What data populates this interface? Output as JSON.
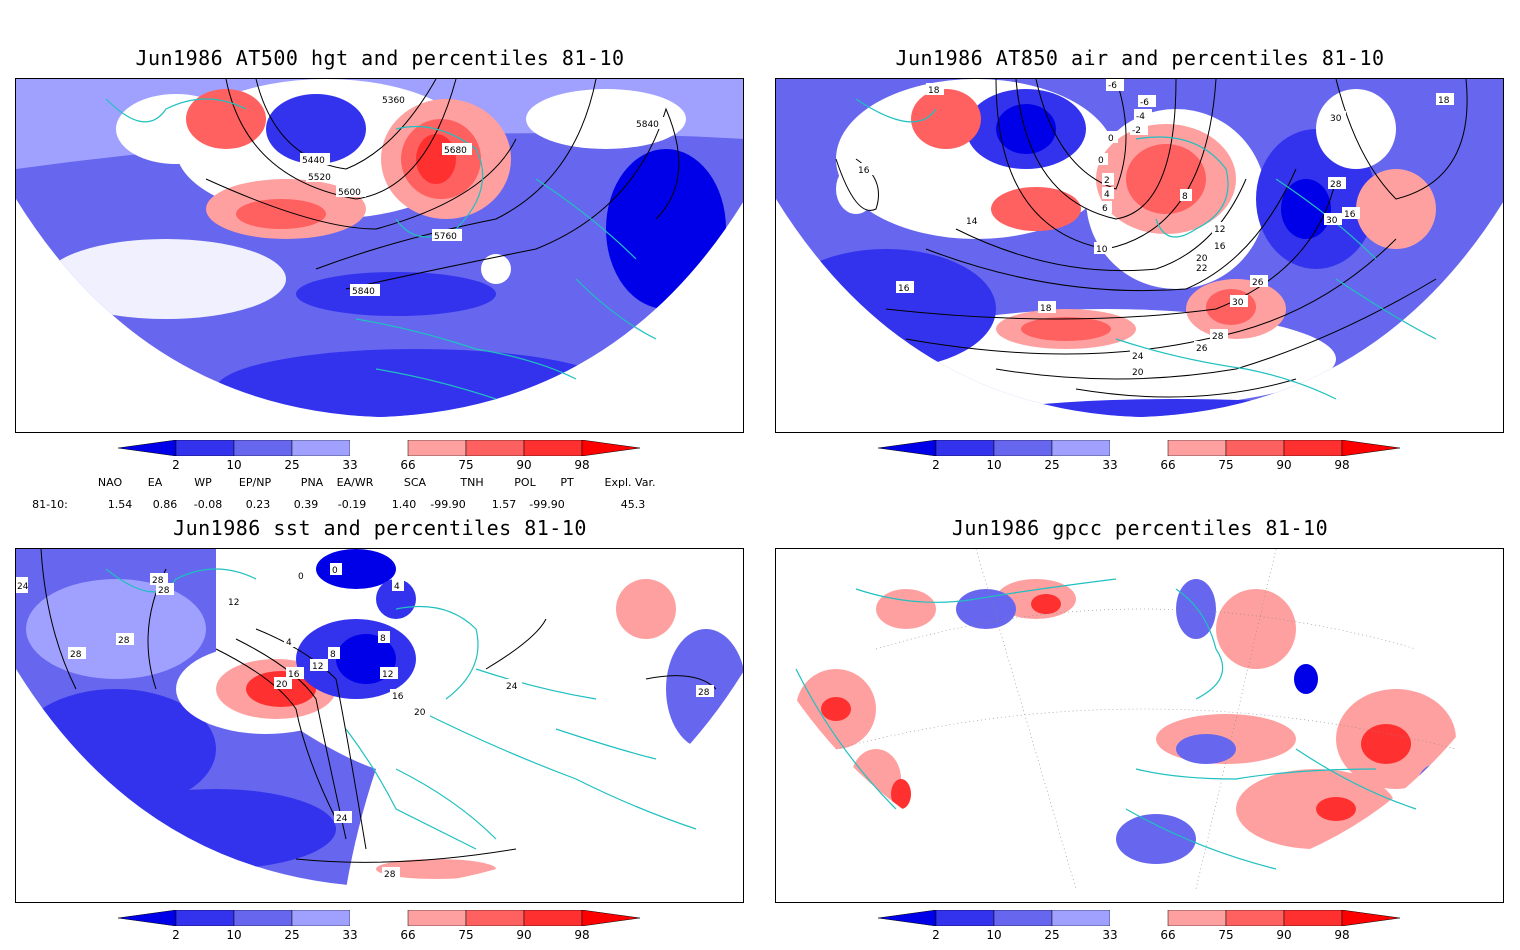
{
  "panels": [
    {
      "id": "p1",
      "title": "Jun1986 AT500 hgt and percentiles 81-10",
      "contour_labels": [
        "5360",
        "5440",
        "5520",
        "5600",
        "5680",
        "5760",
        "5840",
        "5840"
      ]
    },
    {
      "id": "p2",
      "title": "Jun1986 AT850 air and percentiles 81-10",
      "contour_labels": [
        "-6",
        "-6",
        "-4",
        "-2",
        "0",
        "0",
        "2",
        "4",
        "6",
        "8",
        "10",
        "12",
        "14",
        "16",
        "16",
        "16",
        "18",
        "18",
        "18",
        "20",
        "20",
        "22",
        "24",
        "26",
        "26",
        "28",
        "28",
        "30",
        "30",
        "30",
        "16"
      ]
    },
    {
      "id": "p3",
      "title": "Jun1986 sst and percentiles 81-10",
      "contour_labels": [
        "24",
        "28",
        "28",
        "28",
        "28",
        "12",
        "0",
        "0",
        "4",
        "4",
        "8",
        "8",
        "12",
        "12",
        "16",
        "16",
        "20",
        "20",
        "24",
        "24",
        "28",
        "28"
      ]
    },
    {
      "id": "p4",
      "title": "Jun1986 gpcc percentiles 81-10",
      "contour_labels": []
    }
  ],
  "colorbar": {
    "ticks": [
      "2",
      "10",
      "25",
      "33",
      "66",
      "75",
      "90",
      "98"
    ],
    "colors": [
      "#0000e8",
      "#3333ee",
      "#6666ee",
      "#a0a0ff",
      "#ffffff",
      "#ffa0a0",
      "#ff6060",
      "#ff3030",
      "#ff0000"
    ]
  },
  "indices": {
    "headers": [
      "NAO",
      "EA",
      "WP",
      "EP/NP",
      "PNA",
      "EA/WR",
      "SCA",
      "TNH",
      "POL",
      "PT",
      "Expl. Var."
    ],
    "row_label": "81-10:",
    "values": [
      "1.54",
      "0.86",
      "-0.08",
      "0.23",
      "0.39",
      "-0.19",
      "1.40",
      "-99.90",
      "1.57",
      "-99.90",
      "45.3"
    ]
  }
}
